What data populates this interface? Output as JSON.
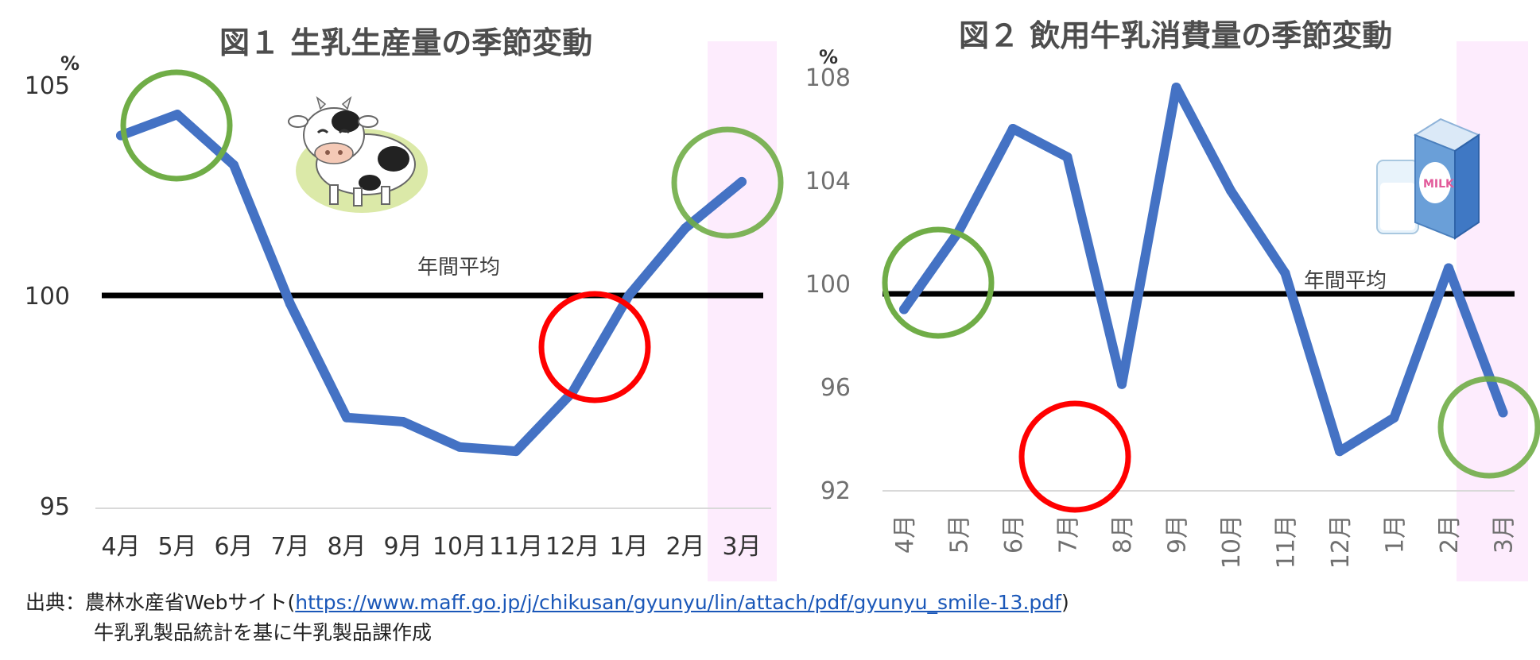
{
  "chart_data": [
    {
      "type": "line",
      "title": "図１ 生乳生産量の季節変動",
      "unit": "%",
      "categories": [
        "4月",
        "5月",
        "6月",
        "7月",
        "8月",
        "9月",
        "10月",
        "11月",
        "12月",
        "1月",
        "2月",
        "3月"
      ],
      "values": [
        103.8,
        104.3,
        103.1,
        99.8,
        97.1,
        97.0,
        96.4,
        96.3,
        97.7,
        100.0,
        101.6,
        102.7
      ],
      "yticks": [
        "105",
        "100",
        "95"
      ],
      "ylim": [
        95,
        105
      ],
      "reference_line": {
        "label": "年間平均",
        "value": 100
      },
      "line_color": "#4472c4",
      "highlight_color": "#fdecfd"
    },
    {
      "type": "line",
      "title": "図２ 飲用牛乳消費量の季節変動",
      "unit": "%",
      "categories": [
        "4月",
        "5月",
        "6月",
        "7月",
        "8月",
        "9月",
        "10月",
        "11月",
        "12月",
        "1月",
        "2月",
        "3月"
      ],
      "values": [
        99.0,
        102.0,
        106.0,
        104.9,
        96.1,
        107.6,
        103.6,
        100.4,
        93.5,
        94.8,
        100.6,
        95.0
      ],
      "yticks": [
        "108",
        "104",
        "100",
        "96",
        "92"
      ],
      "ylim": [
        92,
        108
      ],
      "reference_line": {
        "label": "年間平均",
        "value": 99.6
      },
      "line_color": "#4472c4",
      "highlight_color": "#fdecfd"
    }
  ],
  "source": {
    "prefix": "出典：農林水産省Webサイト(",
    "url": "https://www.maff.go.jp/j/chikusan/gyunyu/lin/attach/pdf/gyunyu_smile-13.pdf",
    "suffix": ")",
    "line2": "牛乳乳製品統計を基に牛乳製品課作成"
  },
  "illustrations": {
    "chart1": "cow-illustration",
    "chart2": "milk-carton-illustration"
  },
  "marker_colors": {
    "good": "#70ad47",
    "bad": "#ff0000"
  },
  "milk_label": "MILK"
}
